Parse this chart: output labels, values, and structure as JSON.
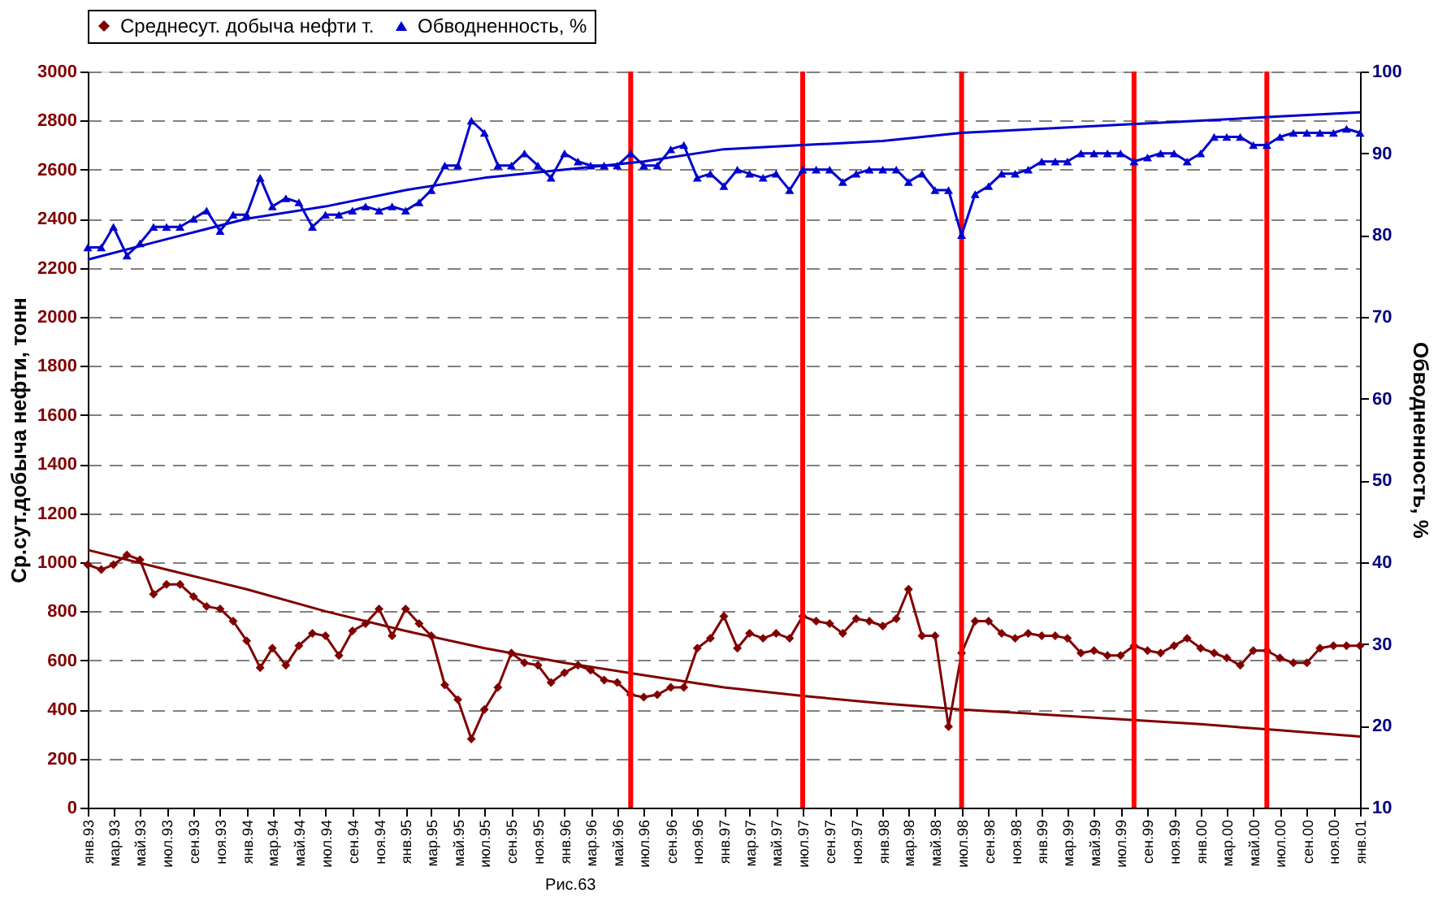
{
  "chart_data": {
    "type": "line",
    "ylabel": "Ср.сут.добыча нефти, тонн",
    "y2label": "Обводненность, %",
    "annotations": [
      "Рис.63"
    ],
    "x": [
      "1993-01",
      "1993-02",
      "1993-03",
      "1993-04",
      "1993-05",
      "1993-06",
      "1993-07",
      "1993-08",
      "1993-09",
      "1993-10",
      "1993-11",
      "1993-12",
      "1994-01",
      "1994-02",
      "1994-03",
      "1994-04",
      "1994-05",
      "1994-06",
      "1994-07",
      "1994-08",
      "1994-09",
      "1994-10",
      "1994-11",
      "1994-12",
      "1995-01",
      "1995-02",
      "1995-03",
      "1995-04",
      "1995-05",
      "1995-06",
      "1995-07",
      "1995-08",
      "1995-09",
      "1995-10",
      "1995-11",
      "1995-12",
      "1996-01",
      "1996-02",
      "1996-03",
      "1996-04",
      "1996-05",
      "1996-06",
      "1996-07",
      "1996-08",
      "1996-09",
      "1996-10",
      "1996-11",
      "1996-12",
      "1997-01",
      "1997-02",
      "1997-03",
      "1997-04",
      "1997-05",
      "1997-06",
      "1997-07",
      "1997-08",
      "1997-09",
      "1997-10",
      "1997-11",
      "1997-12",
      "1998-01",
      "1998-02",
      "1998-03",
      "1998-04",
      "1998-05",
      "1998-06",
      "1998-07",
      "1998-08",
      "1998-09",
      "1998-10",
      "1998-11",
      "1998-12",
      "1999-01",
      "1999-02",
      "1999-03",
      "1999-04",
      "1999-05",
      "1999-06",
      "1999-07",
      "1999-08",
      "1999-09",
      "1999-10",
      "1999-11",
      "1999-12",
      "2000-01",
      "2000-02",
      "2000-03",
      "2000-04",
      "2000-05",
      "2000-06",
      "2000-07",
      "2000-08",
      "2000-09",
      "2000-10",
      "2000-11",
      "2000-12",
      "2001-01"
    ],
    "xlim": [
      "1993-01",
      "2001-01"
    ],
    "xticks": [
      {
        "value": "1993-01",
        "label": "янв.93"
      },
      {
        "value": "1993-03",
        "label": "мар.93"
      },
      {
        "value": "1993-05",
        "label": "май.93"
      },
      {
        "value": "1993-07",
        "label": "июл.93"
      },
      {
        "value": "1993-09",
        "label": "сен.93"
      },
      {
        "value": "1993-11",
        "label": "ноя.93"
      },
      {
        "value": "1994-01",
        "label": "янв.94"
      },
      {
        "value": "1994-03",
        "label": "мар.94"
      },
      {
        "value": "1994-05",
        "label": "май.94"
      },
      {
        "value": "1994-07",
        "label": "июл.94"
      },
      {
        "value": "1994-09",
        "label": "сен.94"
      },
      {
        "value": "1994-11",
        "label": "ноя.94"
      },
      {
        "value": "1995-01",
        "label": "янв.95"
      },
      {
        "value": "1995-03",
        "label": "мар.95"
      },
      {
        "value": "1995-05",
        "label": "май.95"
      },
      {
        "value": "1995-07",
        "label": "июл.95"
      },
      {
        "value": "1995-09",
        "label": "сен.95"
      },
      {
        "value": "1995-11",
        "label": "ноя.95"
      },
      {
        "value": "1996-01",
        "label": "янв.96"
      },
      {
        "value": "1996-03",
        "label": "мар.96"
      },
      {
        "value": "1996-05",
        "label": "май.96"
      },
      {
        "value": "1996-07",
        "label": "июл.96"
      },
      {
        "value": "1996-09",
        "label": "сен.96"
      },
      {
        "value": "1996-11",
        "label": "ноя.96"
      },
      {
        "value": "1997-01",
        "label": "янв.97"
      },
      {
        "value": "1997-03",
        "label": "мар.97"
      },
      {
        "value": "1997-05",
        "label": "май.97"
      },
      {
        "value": "1997-07",
        "label": "июл.97"
      },
      {
        "value": "1997-09",
        "label": "сен.97"
      },
      {
        "value": "1997-11",
        "label": "ноя.97"
      },
      {
        "value": "1998-01",
        "label": "янв.98"
      },
      {
        "value": "1998-03",
        "label": "мар.98"
      },
      {
        "value": "1998-05",
        "label": "май.98"
      },
      {
        "value": "1998-07",
        "label": "июл.98"
      },
      {
        "value": "1998-09",
        "label": "сен.98"
      },
      {
        "value": "1998-11",
        "label": "ноя.98"
      },
      {
        "value": "1999-01",
        "label": "янв.99"
      },
      {
        "value": "1999-03",
        "label": "мар.99"
      },
      {
        "value": "1999-05",
        "label": "май.99"
      },
      {
        "value": "1999-07",
        "label": "июл.99"
      },
      {
        "value": "1999-09",
        "label": "сен.99"
      },
      {
        "value": "1999-11",
        "label": "ноя.99"
      },
      {
        "value": "2000-01",
        "label": "янв.00"
      },
      {
        "value": "2000-03",
        "label": "мар.00"
      },
      {
        "value": "2000-05",
        "label": "май.00"
      },
      {
        "value": "2000-07",
        "label": "июл.00"
      },
      {
        "value": "2000-09",
        "label": "сен.00"
      },
      {
        "value": "2000-11",
        "label": "ноя.00"
      },
      {
        "value": "2001-01",
        "label": "янв.01"
      }
    ],
    "ylim": [
      0,
      3000
    ],
    "yticks": [
      0,
      200,
      400,
      600,
      800,
      1000,
      1200,
      1400,
      1600,
      1800,
      2000,
      2200,
      2400,
      2600,
      2800,
      3000
    ],
    "y2lim": [
      10,
      100
    ],
    "y2ticks": [
      10,
      20,
      30,
      40,
      50,
      60,
      70,
      80,
      90,
      100
    ],
    "grid": "y",
    "legend": "top",
    "line_style": "solid",
    "series": [
      {
        "name": "Среднесут. добыча нефти т.",
        "color": "#800000",
        "marker": "diamond",
        "values": [
          990,
          970,
          990,
          1030,
          1010,
          870,
          910,
          910,
          860,
          820,
          810,
          760,
          680,
          570,
          650,
          580,
          660,
          710,
          700,
          620,
          720,
          750,
          810,
          700,
          810,
          750,
          700,
          500,
          440,
          280,
          400,
          490,
          630,
          590,
          580,
          510,
          550,
          580,
          560,
          520,
          510,
          460,
          450,
          460,
          490,
          490,
          650,
          690,
          780,
          650,
          710,
          690,
          710,
          690,
          780,
          760,
          750,
          710,
          770,
          760,
          740,
          770,
          890,
          700,
          700,
          330,
          630,
          760,
          760,
          710,
          690,
          710,
          700,
          700,
          690,
          630,
          640,
          620,
          620,
          660,
          640,
          630,
          660,
          690,
          650,
          630,
          610,
          580,
          640,
          640,
          610,
          590,
          590,
          650,
          660,
          660,
          660
        ]
      },
      {
        "name": "Обводненность, %",
        "color": "#0000cc",
        "marker": "triangle",
        "axis": "y2",
        "values": [
          78.5,
          78.5,
          81,
          77.5,
          79,
          81,
          81,
          81,
          82,
          83,
          80.5,
          82.5,
          82.5,
          87,
          83.5,
          84.5,
          84,
          81,
          82.5,
          82.5,
          83,
          83.5,
          83,
          83.5,
          83,
          84,
          85.5,
          88.5,
          88.5,
          94,
          92.5,
          88.5,
          88.5,
          90,
          88.5,
          87,
          90,
          89,
          88.5,
          88.5,
          88.5,
          90,
          88.5,
          88.5,
          90.5,
          91,
          87,
          87.5,
          86,
          88,
          87.5,
          87,
          87.5,
          85.5,
          88,
          88,
          88,
          86.5,
          87.5,
          88,
          88,
          88,
          86.5,
          87.5,
          85.5,
          85.5,
          80,
          85,
          86,
          87.5,
          87.5,
          88,
          89,
          89,
          89,
          90,
          90,
          90,
          90,
          89,
          89.5,
          90,
          90,
          89,
          90,
          92,
          92,
          92,
          91,
          91,
          92,
          92.5,
          92.5,
          92.5,
          92.5,
          93,
          92.5
        ]
      },
      {
        "type": "line",
        "color": "#800000",
        "marker": "none",
        "x": [
          "1993-01",
          "1993-07",
          "1994-01",
          "1994-07",
          "1995-01",
          "1995-07",
          "1996-01",
          "1996-07",
          "1997-01",
          "1997-07",
          "1998-01",
          "1998-07",
          "1999-01",
          "1999-07",
          "2000-01",
          "2000-07",
          "2001-01"
        ],
        "values": [
          1050,
          970,
          890,
          800,
          720,
          650,
          590,
          540,
          490,
          455,
          425,
          400,
          380,
          360,
          340,
          315,
          290
        ]
      },
      {
        "type": "line",
        "color": "#0000cc",
        "marker": "none",
        "axis": "y2",
        "x": [
          "1993-01",
          "1993-07",
          "1994-01",
          "1994-07",
          "1995-01",
          "1995-07",
          "1996-01",
          "1996-07",
          "1997-01",
          "1997-07",
          "1998-01",
          "1998-07",
          "1999-01",
          "1999-07",
          "2000-01",
          "2000-07",
          "2001-01"
        ],
        "values": [
          77,
          79.5,
          82,
          83.5,
          85.5,
          87,
          88,
          89,
          90.5,
          91,
          91.5,
          92.5,
          93,
          93.5,
          94,
          94.5,
          95
        ]
      }
    ],
    "ref_lines": [
      {
        "axis": "x",
        "value": "1996-06",
        "color": "#ff0000"
      },
      {
        "axis": "x",
        "value": "1997-07",
        "color": "#ff0000"
      },
      {
        "axis": "x",
        "value": "1998-07",
        "color": "#ff0000"
      },
      {
        "axis": "x",
        "value": "1999-08",
        "color": "#ff0000"
      },
      {
        "axis": "x",
        "value": "2000-06",
        "color": "#ff0000"
      }
    ]
  }
}
